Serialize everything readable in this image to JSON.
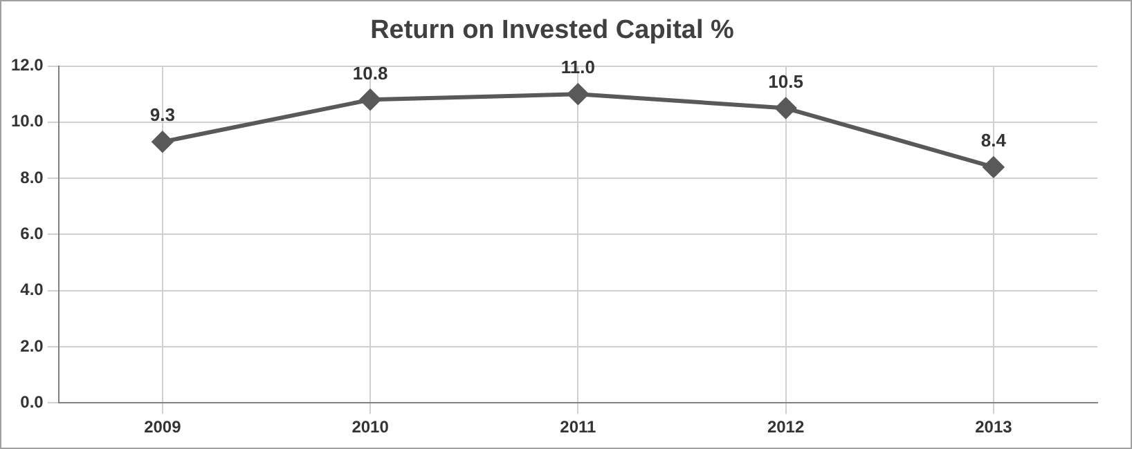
{
  "chart_data": {
    "type": "line",
    "title": "Return on Invested Capital %",
    "categories": [
      "2009",
      "2010",
      "2011",
      "2012",
      "2013"
    ],
    "series": [
      {
        "color": "#595959",
        "values": [
          9.3,
          10.8,
          11.0,
          10.5,
          8.4
        ],
        "value_labels": [
          "9.3",
          "10.8",
          "11.0",
          "10.5",
          "8.4"
        ]
      }
    ],
    "ylim": [
      0,
      12
    ],
    "yticks": [
      {
        "value": 0,
        "label": "0.0"
      },
      {
        "value": 2,
        "label": "2.0"
      },
      {
        "value": 4,
        "label": "4.0"
      },
      {
        "value": 6,
        "label": "6.0"
      },
      {
        "value": 8,
        "label": "8.0"
      },
      {
        "value": 10,
        "label": "10.0"
      },
      {
        "value": 12,
        "label": "12.0"
      }
    ],
    "grid": true,
    "legend": false,
    "marker": "diamond",
    "line_style": "solid"
  }
}
